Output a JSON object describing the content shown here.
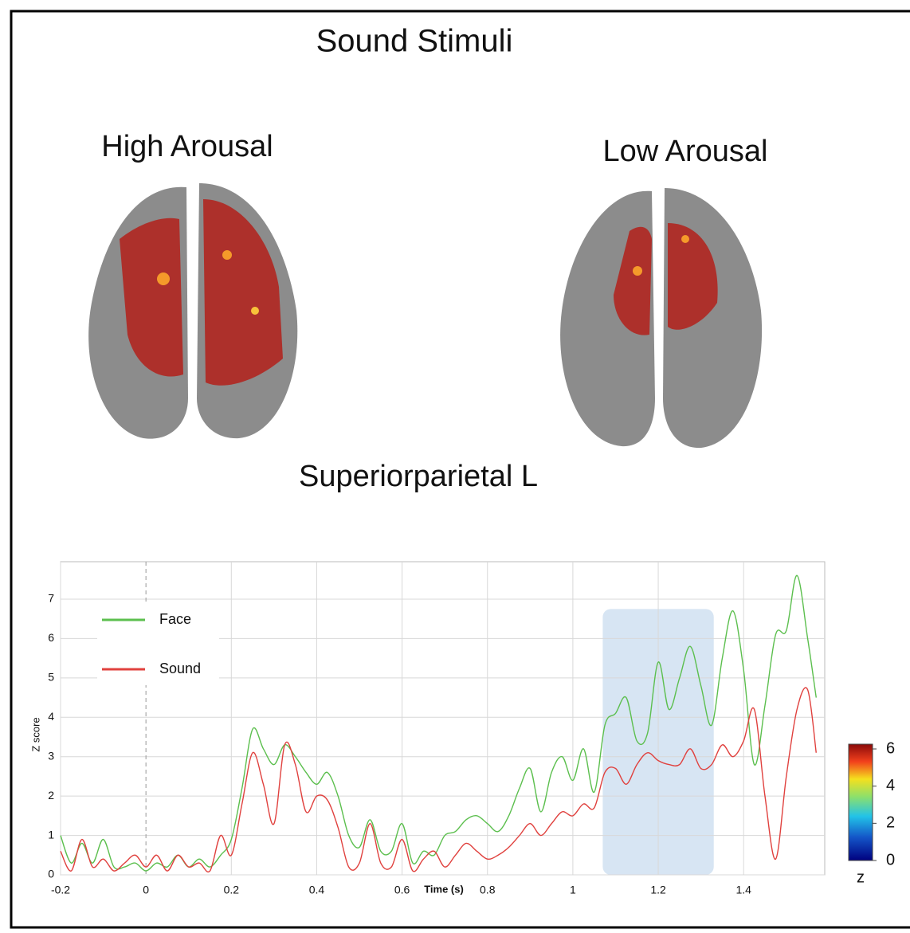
{
  "title": "Sound Stimuli",
  "panels": [
    "High Arousal",
    "Low Arousal"
  ],
  "chart_data": {
    "type": "line",
    "title": "Superiorparietal L",
    "x_label": "Time (s)",
    "y_label": "Z score",
    "x": [
      -0.2,
      -0.175,
      -0.15,
      -0.125,
      -0.1,
      -0.075,
      -0.05,
      -0.025,
      0,
      0.025,
      0.05,
      0.075,
      0.1,
      0.125,
      0.15,
      0.175,
      0.2,
      0.225,
      0.25,
      0.275,
      0.3,
      0.325,
      0.35,
      0.375,
      0.4,
      0.425,
      0.45,
      0.475,
      0.5,
      0.525,
      0.55,
      0.575,
      0.6,
      0.625,
      0.65,
      0.675,
      0.7,
      0.725,
      0.75,
      0.775,
      0.8,
      0.825,
      0.85,
      0.875,
      0.9,
      0.925,
      0.95,
      0.975,
      1.0,
      1.025,
      1.05,
      1.075,
      1.1,
      1.125,
      1.15,
      1.175,
      1.2,
      1.225,
      1.25,
      1.275,
      1.3,
      1.325,
      1.35,
      1.375,
      1.4,
      1.425,
      1.45,
      1.475,
      1.5,
      1.525,
      1.55,
      1.57
    ],
    "series": [
      {
        "name": "Face",
        "color": "#5cbf4e",
        "values": [
          1.0,
          0.3,
          0.8,
          0.3,
          0.9,
          0.2,
          0.2,
          0.3,
          0.1,
          0.3,
          0.2,
          0.5,
          0.2,
          0.4,
          0.2,
          0.5,
          0.9,
          2.2,
          3.7,
          3.2,
          2.8,
          3.3,
          3.0,
          2.6,
          2.3,
          2.6,
          2.0,
          1.0,
          0.7,
          1.4,
          0.6,
          0.6,
          1.3,
          0.3,
          0.6,
          0.5,
          1.0,
          1.1,
          1.4,
          1.5,
          1.3,
          1.1,
          1.5,
          2.2,
          2.7,
          1.6,
          2.6,
          3.0,
          2.4,
          3.2,
          2.1,
          3.8,
          4.1,
          4.5,
          3.4,
          3.6,
          5.4,
          4.2,
          5.0,
          5.8,
          4.8,
          3.8,
          5.5,
          6.7,
          5.2,
          2.8,
          4.3,
          6.1,
          6.2,
          7.6,
          6.0,
          4.5
        ]
      },
      {
        "name": "Sound",
        "color": "#e0413e",
        "values": [
          0.6,
          0.1,
          0.9,
          0.2,
          0.4,
          0.1,
          0.3,
          0.5,
          0.2,
          0.5,
          0.1,
          0.5,
          0.2,
          0.3,
          0.1,
          1.0,
          0.5,
          1.8,
          3.1,
          2.3,
          1.3,
          3.3,
          2.8,
          1.6,
          2.0,
          1.9,
          1.2,
          0.2,
          0.3,
          1.3,
          0.3,
          0.2,
          0.9,
          0.1,
          0.4,
          0.6,
          0.2,
          0.5,
          0.8,
          0.6,
          0.4,
          0.5,
          0.7,
          1.0,
          1.3,
          1.0,
          1.3,
          1.6,
          1.5,
          1.8,
          1.7,
          2.6,
          2.7,
          2.3,
          2.8,
          3.1,
          2.9,
          2.8,
          2.8,
          3.2,
          2.7,
          2.8,
          3.3,
          3.0,
          3.4,
          4.2,
          2.0,
          0.4,
          2.5,
          4.2,
          4.7,
          3.1
        ]
      }
    ],
    "xlim": [
      -0.2,
      1.59
    ],
    "ylim": [
      0,
      7.95
    ],
    "xticks": [
      -0.2,
      0,
      0.2,
      0.4,
      0.6,
      0.8,
      1,
      1.2,
      1.4
    ],
    "yticks": [
      0,
      1,
      2,
      3,
      4,
      5,
      6,
      7
    ],
    "grid": true,
    "legend": "upper left",
    "highlight": {
      "x": [
        1.07,
        1.33
      ],
      "y": 6.75,
      "color": "#c9dcef"
    },
    "colorbar": {
      "label": "z",
      "lim": [
        0,
        6
      ],
      "ticks": [
        0,
        2,
        4,
        6
      ]
    }
  }
}
